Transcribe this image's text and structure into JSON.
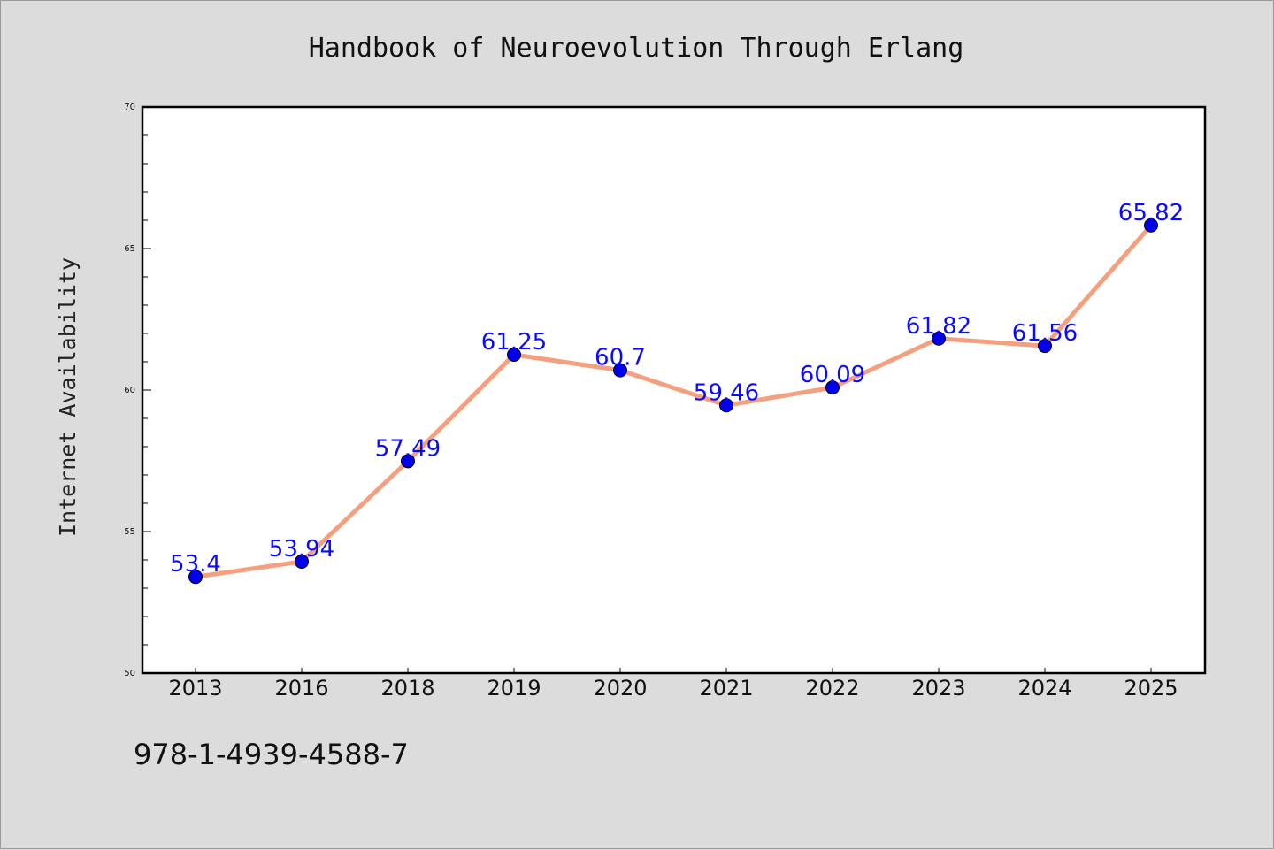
{
  "chart_data": {
    "type": "line",
    "title": "Handbook of Neuroevolution Through Erlang",
    "xlabel": "",
    "ylabel": "Internet Availability",
    "categories": [
      "2013",
      "2016",
      "2018",
      "2019",
      "2020",
      "2021",
      "2022",
      "2023",
      "2024",
      "2025"
    ],
    "series": [
      {
        "values": [
          53.4,
          53.94,
          57.49,
          61.25,
          60.7,
          59.46,
          60.09,
          61.82,
          61.56,
          65.82
        ]
      }
    ],
    "data_labels": [
      "53.4",
      "53.94",
      "57.49",
      "61.25",
      "60.7",
      "59.46",
      "60.09",
      "61.82",
      "61.56",
      "65.82"
    ],
    "ylim": [
      50,
      70
    ],
    "yticks": [
      50,
      55,
      60,
      65,
      70
    ],
    "grid": false,
    "line_color": "#f4a07e",
    "marker_color": "#0000ee",
    "label_color": "#0a0aff"
  },
  "footnote": "978-1-4939-4588-7"
}
